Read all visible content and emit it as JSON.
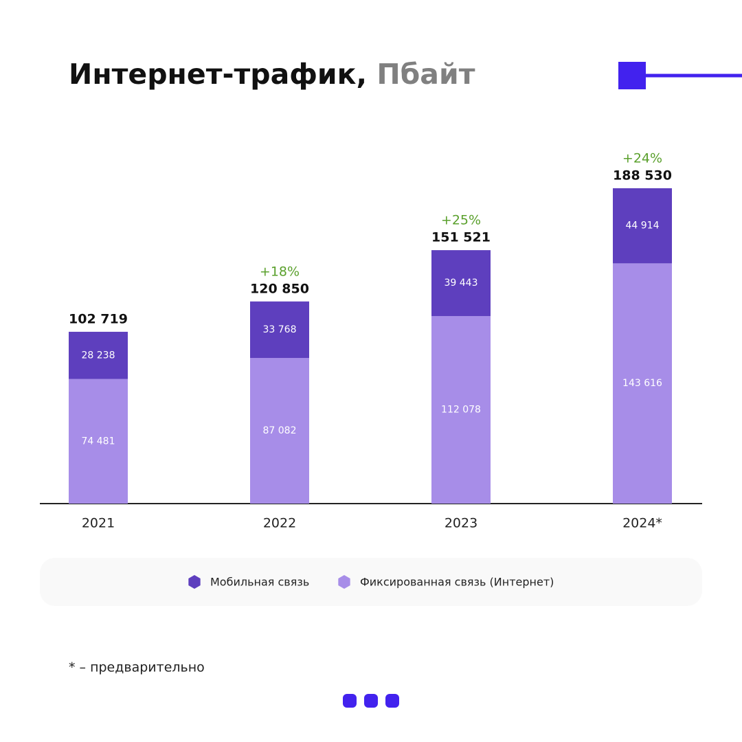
{
  "chart_data": {
    "type": "stacked_bar",
    "title": "Интернет-трафик,",
    "title_unit": "Пбайт",
    "categories": [
      "2021",
      "2022",
      "2023",
      "2024*"
    ],
    "series": [
      {
        "name": "Мобильная связь",
        "color": "#5e3fbe",
        "values": [
          28238,
          33768,
          39443,
          44914
        ],
        "value_labels": [
          "28 238",
          "33 768",
          "39 443",
          "44 914"
        ]
      },
      {
        "name": "Фиксированная связь (Интернет)",
        "color": "#a78de8",
        "values": [
          74481,
          87082,
          112078,
          143616
        ],
        "value_labels": [
          "74 481",
          "87 082",
          "112 078",
          "143 616"
        ]
      }
    ],
    "totals": [
      102719,
      120850,
      151521,
      188530
    ],
    "total_labels": [
      "102 719",
      "120 850",
      "151 521",
      "188 530"
    ],
    "growth_labels": [
      null,
      "+18%",
      "+25%",
      "+24%"
    ],
    "note": "* – предварительно"
  }
}
